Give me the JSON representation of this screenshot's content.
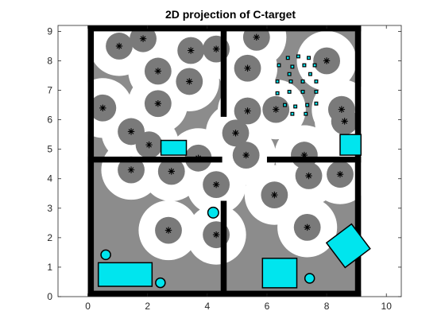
{
  "chart_data": {
    "type": "scatter",
    "title": "2D projection of C-target",
    "xlabel": "",
    "ylabel": "",
    "xlim": [
      -1,
      10.5
    ],
    "ylim": [
      0,
      9.2
    ],
    "xticks": [
      0,
      2,
      4,
      6,
      8,
      10
    ],
    "yticks": [
      0,
      1,
      2,
      3,
      4,
      5,
      6,
      7,
      8,
      9
    ],
    "grid": false,
    "colors": {
      "background": "#ffffff",
      "floor": "#8c8c8c",
      "clearance": "#ffffff",
      "inflation": "#7a7a7a",
      "wall": "#000000",
      "obstacle": "#00e5ee",
      "marker": "#000000"
    },
    "clearance_radius": 1.0,
    "inflation_radius": 0.45,
    "walls": [
      {
        "x0": 0,
        "y0": 0,
        "x1": 0.2,
        "y1": 9.2
      },
      {
        "x0": 8.95,
        "y0": 0,
        "x1": 9.15,
        "y1": 9.2
      },
      {
        "x0": 0,
        "y0": 0,
        "x1": 9.15,
        "y1": 0.2
      },
      {
        "x0": 0,
        "y0": 9.0,
        "x1": 9.15,
        "y1": 9.2
      },
      {
        "x0": 0,
        "y0": 4.55,
        "x1": 4.5,
        "y1": 4.75
      },
      {
        "x0": 6.0,
        "y0": 4.55,
        "x1": 9.15,
        "y1": 4.75
      },
      {
        "x0": 4.45,
        "y0": 6.1,
        "x1": 4.65,
        "y1": 9.2
      },
      {
        "x0": 4.45,
        "y0": 0,
        "x1": 4.65,
        "y1": 3.25
      }
    ],
    "targets": [
      {
        "x": 1.05,
        "y": 8.5
      },
      {
        "x": 1.85,
        "y": 8.75
      },
      {
        "x": 2.35,
        "y": 7.65
      },
      {
        "x": 2.35,
        "y": 6.55
      },
      {
        "x": 3.45,
        "y": 8.35
      },
      {
        "x": 4.3,
        "y": 8.4
      },
      {
        "x": 3.4,
        "y": 7.3
      },
      {
        "x": 0.5,
        "y": 6.4
      },
      {
        "x": 1.45,
        "y": 5.6
      },
      {
        "x": 2.05,
        "y": 5.15
      },
      {
        "x": 5.65,
        "y": 8.8
      },
      {
        "x": 5.35,
        "y": 7.75
      },
      {
        "x": 5.35,
        "y": 6.3
      },
      {
        "x": 4.95,
        "y": 5.55
      },
      {
        "x": 3.7,
        "y": 4.7
      },
      {
        "x": 5.3,
        "y": 4.8
      },
      {
        "x": 8.0,
        "y": 8.0
      },
      {
        "x": 8.5,
        "y": 6.35
      },
      {
        "x": 8.6,
        "y": 5.95
      },
      {
        "x": 7.25,
        "y": 4.8
      },
      {
        "x": 1.45,
        "y": 4.3
      },
      {
        "x": 2.8,
        "y": 4.25
      },
      {
        "x": 4.3,
        "y": 3.8
      },
      {
        "x": 7.4,
        "y": 4.1
      },
      {
        "x": 8.45,
        "y": 4.15
      },
      {
        "x": 6.25,
        "y": 3.45
      },
      {
        "x": 4.3,
        "y": 2.1
      },
      {
        "x": 2.7,
        "y": 2.25
      },
      {
        "x": 7.35,
        "y": 2.35
      },
      {
        "x": 6.3,
        "y": 6.35
      }
    ],
    "small_obstacles": [
      {
        "x": 6.7,
        "y": 8.1
      },
      {
        "x": 7.05,
        "y": 8.15
      },
      {
        "x": 7.4,
        "y": 8.1
      },
      {
        "x": 6.4,
        "y": 7.85
      },
      {
        "x": 6.85,
        "y": 7.8
      },
      {
        "x": 7.25,
        "y": 7.85
      },
      {
        "x": 7.6,
        "y": 7.85
      },
      {
        "x": 6.75,
        "y": 7.55
      },
      {
        "x": 7.45,
        "y": 7.55
      },
      {
        "x": 6.35,
        "y": 7.3
      },
      {
        "x": 6.8,
        "y": 7.3
      },
      {
        "x": 7.2,
        "y": 7.3
      },
      {
        "x": 7.65,
        "y": 7.3
      },
      {
        "x": 6.35,
        "y": 6.9
      },
      {
        "x": 6.75,
        "y": 6.95
      },
      {
        "x": 7.2,
        "y": 6.95
      },
      {
        "x": 7.65,
        "y": 6.95
      },
      {
        "x": 6.6,
        "y": 6.5
      },
      {
        "x": 6.95,
        "y": 6.45
      },
      {
        "x": 7.35,
        "y": 6.5
      },
      {
        "x": 7.65,
        "y": 6.55
      },
      {
        "x": 6.85,
        "y": 6.2
      },
      {
        "x": 7.3,
        "y": 6.2
      }
    ],
    "rect_obstacles": [
      {
        "x": 2.45,
        "y": 4.8,
        "w": 0.85,
        "h": 0.5,
        "angle": 0
      },
      {
        "x": 8.45,
        "y": 4.8,
        "w": 0.7,
        "h": 0.7,
        "angle": 0
      },
      {
        "x": 0.35,
        "y": 0.35,
        "w": 1.8,
        "h": 0.8,
        "angle": 0
      },
      {
        "x": 5.85,
        "y": 0.3,
        "w": 1.15,
        "h": 1.0,
        "angle": 0
      },
      {
        "x": 8.2,
        "y": 1.2,
        "w": 1.05,
        "h": 1.05,
        "angle": 37
      }
    ],
    "circle_obstacles": [
      {
        "x": 0.6,
        "y": 1.42,
        "r": 0.16
      },
      {
        "x": 2.43,
        "y": 0.47,
        "r": 0.16
      },
      {
        "x": 7.43,
        "y": 0.62,
        "r": 0.16
      },
      {
        "x": 4.2,
        "y": 2.85,
        "r": 0.18
      }
    ]
  }
}
